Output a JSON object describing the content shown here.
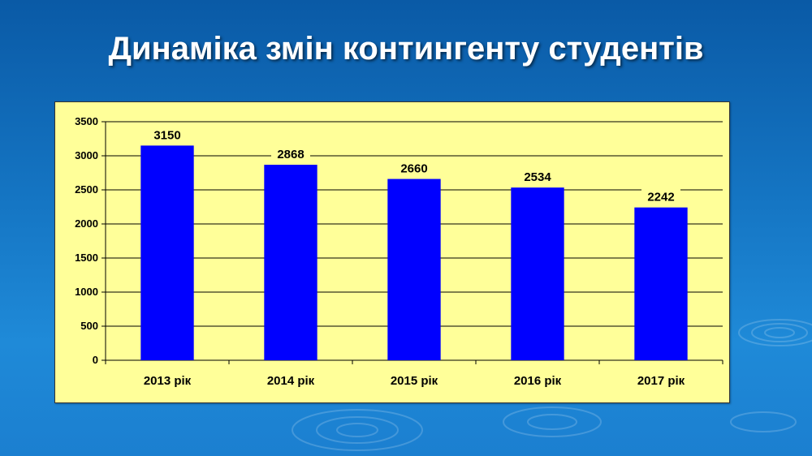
{
  "slide": {
    "title": "Динаміка змін контингенту студентів"
  },
  "colors": {
    "bar": "#0000ff",
    "plot_background": "#ffff99",
    "slide_background": "#1576c4"
  },
  "chart_data": {
    "type": "bar",
    "title": "",
    "xlabel": "",
    "ylabel": "",
    "categories": [
      "2013 рік",
      "2014 рік",
      "2015 рік",
      "2016 рік",
      "2017 рік"
    ],
    "values": [
      3150,
      2868,
      2660,
      2534,
      2242
    ],
    "ylim": [
      0,
      3500
    ],
    "yticks": [
      0,
      500,
      1000,
      1500,
      2000,
      2500,
      3000,
      3500
    ],
    "grid": true,
    "data_labels": true,
    "legend": "none"
  }
}
